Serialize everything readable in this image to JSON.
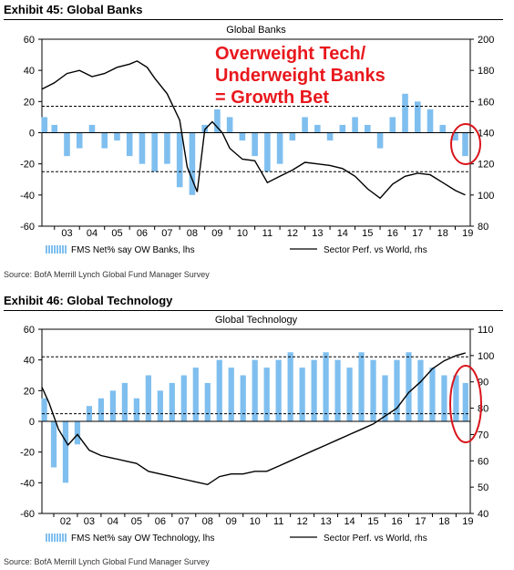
{
  "exhibits": [
    {
      "label": "Exhibit 45: Global Banks",
      "source": "Source:  BofA Merrill Lynch Global Fund Manager Survey"
    },
    {
      "label": "Exhibit 46: Global Technology",
      "source": "Source:  BofA Merrill Lynch Global Fund Manager Survey"
    }
  ],
  "annotation": [
    "Overweight Tech/",
    "Underweight Banks",
    "= Growth Bet"
  ],
  "colors": {
    "bars": "#7fbfef",
    "line": "#000000",
    "highlight": "#d9141b",
    "annotation": "#e8181d"
  },
  "chart_data": [
    {
      "type": "bar+line",
      "title": "Global Banks",
      "x_ticks": [
        "03",
        "04",
        "05",
        "06",
        "07",
        "08",
        "09",
        "10",
        "11",
        "12",
        "13",
        "14",
        "15",
        "16",
        "17",
        "18",
        "19"
      ],
      "x_range": [
        2002.5,
        2019.6
      ],
      "y_left": {
        "range": [
          -60,
          60
        ],
        "ticks": [
          "60",
          "40",
          "20",
          "0",
          "-20",
          "-40",
          "-60"
        ]
      },
      "y_right": {
        "range": [
          80,
          200
        ],
        "ticks": [
          "200",
          "180",
          "160",
          "140",
          "120",
          "100",
          "80"
        ]
      },
      "reference_lines_lhs": [
        0,
        17,
        -25
      ],
      "bar_series": {
        "name": "FMS Net% say OW Banks, lhs",
        "axis": "left",
        "x": [
          2002.6,
          2003.0,
          2003.5,
          2004.0,
          2004.5,
          2005.0,
          2005.5,
          2006.0,
          2006.5,
          2007.0,
          2007.5,
          2008.0,
          2008.5,
          2009.0,
          2009.5,
          2010.0,
          2010.5,
          2011.0,
          2011.5,
          2012.0,
          2012.5,
          2013.0,
          2013.5,
          2014.0,
          2014.5,
          2015.0,
          2015.5,
          2016.0,
          2016.5,
          2017.0,
          2017.5,
          2018.0,
          2018.5,
          2019.0,
          2019.4
        ],
        "values": [
          10,
          5,
          -15,
          -10,
          5,
          -10,
          -5,
          -15,
          -20,
          -25,
          -20,
          -35,
          -40,
          5,
          15,
          10,
          -5,
          -15,
          -25,
          -20,
          -5,
          10,
          5,
          -5,
          5,
          10,
          5,
          -10,
          10,
          25,
          20,
          15,
          5,
          -5,
          -15
        ]
      },
      "line_series": {
        "name": "Sector Perf. vs World, rhs",
        "axis": "right",
        "x": [
          2002.5,
          2003.0,
          2003.5,
          2004.0,
          2004.5,
          2005.0,
          2005.5,
          2006.0,
          2006.3,
          2006.7,
          2007.0,
          2007.5,
          2008.0,
          2008.3,
          2008.7,
          2009.0,
          2009.3,
          2009.7,
          2010.0,
          2010.5,
          2011.0,
          2011.5,
          2012.0,
          2012.5,
          2013.0,
          2013.5,
          2014.0,
          2014.5,
          2015.0,
          2015.5,
          2016.0,
          2016.5,
          2017.0,
          2017.5,
          2018.0,
          2018.5,
          2019.0,
          2019.4
        ],
        "values": [
          168,
          172,
          178,
          180,
          176,
          178,
          182,
          184,
          186,
          182,
          175,
          165,
          148,
          118,
          102,
          142,
          147,
          140,
          130,
          123,
          122,
          108,
          112,
          116,
          121,
          120,
          119,
          117,
          112,
          104,
          98,
          107,
          112,
          114,
          113,
          108,
          103,
          100
        ]
      }
    },
    {
      "type": "bar+line",
      "title": "Global Technology",
      "x_ticks": [
        "02",
        "03",
        "04",
        "05",
        "06",
        "07",
        "08",
        "09",
        "10",
        "11",
        "12",
        "13",
        "14",
        "15",
        "16",
        "17",
        "18",
        "19"
      ],
      "x_range": [
        2001.5,
        2019.6
      ],
      "y_left": {
        "range": [
          -60,
          60
        ],
        "ticks": [
          "60",
          "40",
          "20",
          "0",
          "-20",
          "-40",
          "-60"
        ]
      },
      "y_right": {
        "range": [
          40,
          110
        ],
        "ticks": [
          "110",
          "100",
          "90",
          "80",
          "70",
          "60",
          "50",
          "40"
        ]
      },
      "reference_lines_lhs": [
        0,
        42,
        5
      ],
      "bar_series": {
        "name": "FMS Net% say OW Technology, lhs",
        "axis": "left",
        "x": [
          2001.6,
          2002.0,
          2002.5,
          2003.0,
          2003.5,
          2004.0,
          2004.5,
          2005.0,
          2005.5,
          2006.0,
          2006.5,
          2007.0,
          2007.5,
          2008.0,
          2008.5,
          2009.0,
          2009.5,
          2010.0,
          2010.5,
          2011.0,
          2011.5,
          2012.0,
          2012.5,
          2013.0,
          2013.5,
          2014.0,
          2014.5,
          2015.0,
          2015.5,
          2016.0,
          2016.5,
          2017.0,
          2017.5,
          2018.0,
          2018.5,
          2019.0,
          2019.4
        ],
        "values": [
          15,
          -30,
          -40,
          -15,
          10,
          15,
          20,
          25,
          15,
          30,
          20,
          25,
          30,
          35,
          25,
          40,
          35,
          30,
          40,
          35,
          40,
          45,
          35,
          40,
          45,
          40,
          35,
          45,
          40,
          30,
          40,
          45,
          40,
          35,
          30,
          30,
          25
        ]
      },
      "line_series": {
        "name": "Sector Perf. vs World, rhs",
        "axis": "right",
        "x": [
          2001.5,
          2001.8,
          2002.2,
          2002.6,
          2003.0,
          2003.5,
          2004.0,
          2004.5,
          2005.0,
          2005.5,
          2006.0,
          2006.5,
          2007.0,
          2007.5,
          2008.0,
          2008.5,
          2009.0,
          2009.5,
          2010.0,
          2010.5,
          2011.0,
          2011.5,
          2012.0,
          2012.5,
          2013.0,
          2013.5,
          2014.0,
          2014.5,
          2015.0,
          2015.5,
          2016.0,
          2016.5,
          2017.0,
          2017.5,
          2018.0,
          2018.5,
          2019.0,
          2019.4
        ],
        "values": [
          88,
          82,
          72,
          66,
          70,
          64,
          62,
          61,
          60,
          59,
          56,
          55,
          54,
          53,
          52,
          51,
          54,
          55,
          55,
          56,
          56,
          58,
          60,
          62,
          64,
          66,
          68,
          70,
          72,
          74,
          77,
          80,
          86,
          90,
          95,
          98,
          100,
          101
        ]
      }
    }
  ]
}
